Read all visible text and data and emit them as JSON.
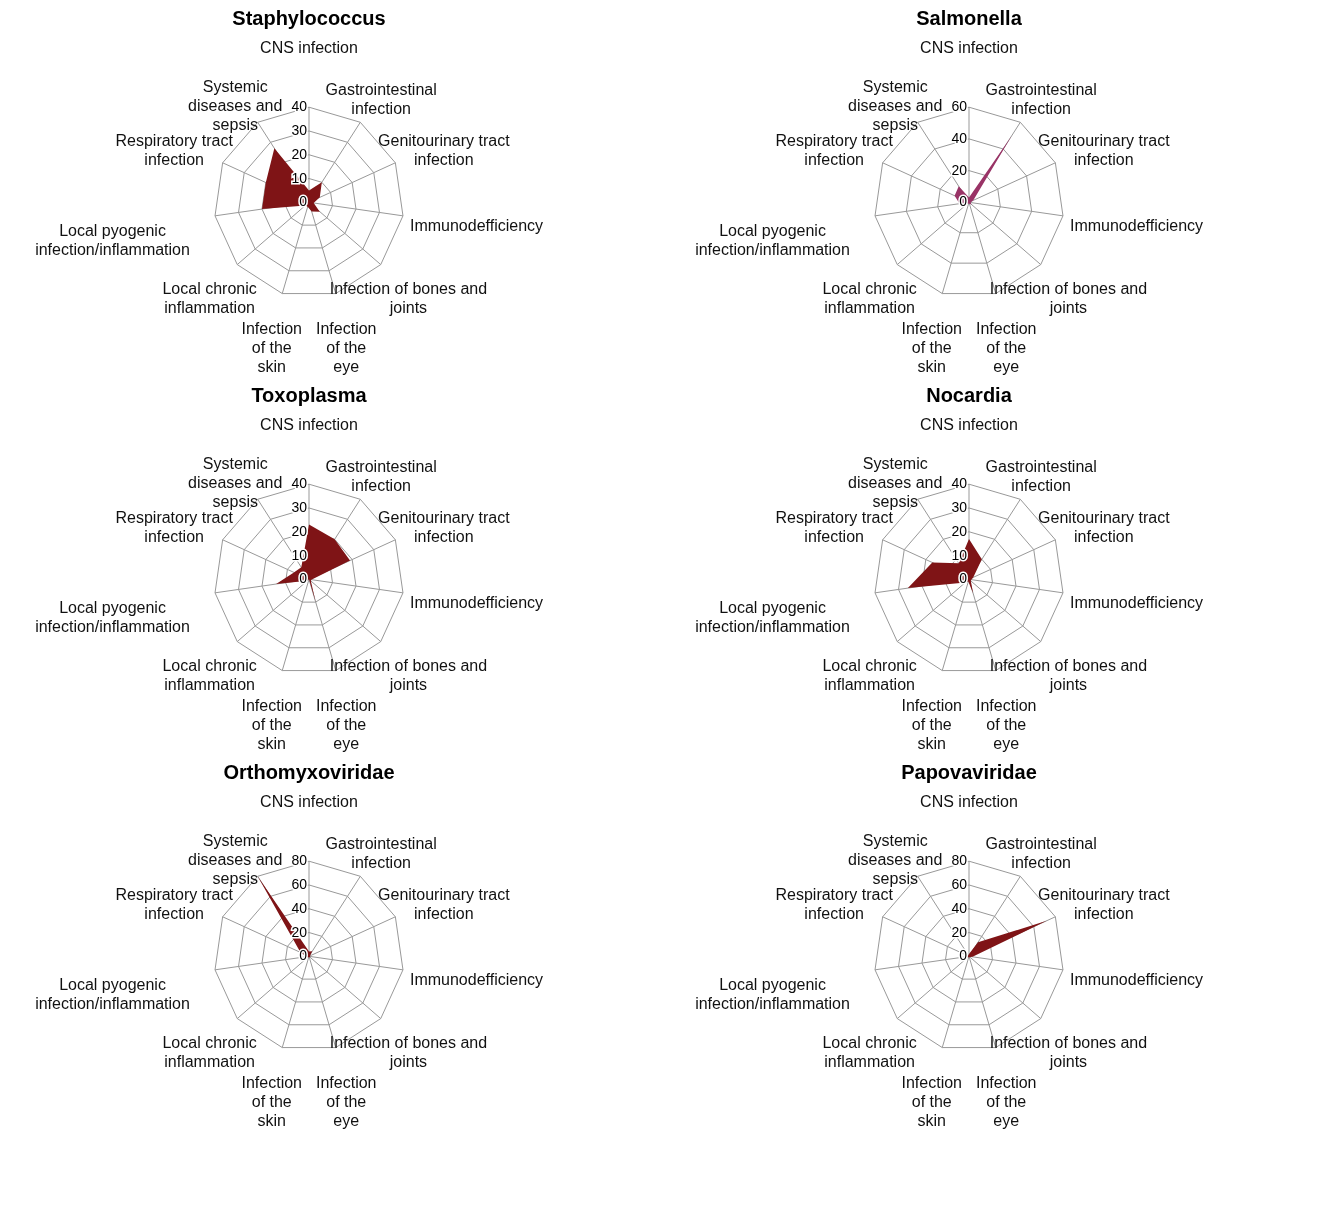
{
  "chart_data": [
    {
      "type": "radar",
      "title": "Staphylococcus",
      "grid": true,
      "categories": [
        "CNS infection",
        "Gastrointestinal infection",
        "Genitourinary tract infection",
        "Immunodefficiency",
        "Infection of bones and joints",
        "Infection of the eye",
        "Infection of the skin",
        "Local chronic inflammation",
        "Local pyogenic infection/inflammation",
        "Respiratory tract infection",
        "Systemic diseases and sepsis"
      ],
      "ylim": [
        0,
        40
      ],
      "yticks": [
        0,
        10,
        20,
        30,
        40
      ],
      "series": [
        {
          "color": "#7f1416",
          "values": [
            5,
            10,
            5,
            2,
            6,
            4,
            2,
            2,
            20,
            20,
            27
          ]
        }
      ]
    },
    {
      "type": "radar",
      "title": "Salmonella",
      "grid": true,
      "categories": [
        "CNS infection",
        "Gastrointestinal infection",
        "Genitourinary tract infection",
        "Immunodefficiency",
        "Infection of bones and joints",
        "Infection of the eye",
        "Infection of the skin",
        "Local chronic inflammation",
        "Local pyogenic infection/inflammation",
        "Respiratory tract infection",
        "Systemic diseases and sepsis"
      ],
      "ylim": [
        0,
        60
      ],
      "yticks": [
        0,
        20,
        40,
        60
      ],
      "series": [
        {
          "color": "#993366",
          "values": [
            3,
            50,
            3,
            1,
            2,
            1,
            1,
            1,
            6,
            10,
            12
          ]
        }
      ]
    },
    {
      "type": "radar",
      "title": "Toxoplasma",
      "grid": true,
      "categories": [
        "CNS infection",
        "Gastrointestinal infection",
        "Genitourinary tract infection",
        "Immunodefficiency",
        "Infection of bones and joints",
        "Infection of the eye",
        "Infection of the skin",
        "Local chronic inflammation",
        "Local pyogenic infection/inflammation",
        "Respiratory tract infection",
        "Systemic diseases and sepsis"
      ],
      "ylim": [
        0,
        40
      ],
      "yticks": [
        0,
        10,
        20,
        30,
        40
      ],
      "series": [
        {
          "color": "#7f1416",
          "values": [
            23,
            20,
            19,
            1,
            1,
            10,
            0,
            1,
            14,
            7,
            6
          ]
        }
      ]
    },
    {
      "type": "radar",
      "title": "Nocardia",
      "grid": true,
      "categories": [
        "CNS infection",
        "Gastrointestinal infection",
        "Genitourinary tract infection",
        "Immunodefficiency",
        "Infection of bones and joints",
        "Infection of the eye",
        "Infection of the skin",
        "Local chronic inflammation",
        "Local pyogenic infection/inflammation",
        "Respiratory tract infection",
        "Systemic diseases and sepsis"
      ],
      "ylim": [
        0,
        40
      ],
      "yticks": [
        0,
        10,
        20,
        30,
        40
      ],
      "series": [
        {
          "color": "#7f1416",
          "values": [
            17,
            10,
            2,
            1,
            1,
            6,
            1,
            2,
            26,
            17,
            8
          ]
        }
      ]
    },
    {
      "type": "radar",
      "title": "Orthomyxoviridae",
      "grid": true,
      "categories": [
        "CNS infection",
        "Gastrointestinal infection",
        "Genitourinary tract infection",
        "Immunodefficiency",
        "Infection of bones and joints",
        "Infection of the eye",
        "Infection of the skin",
        "Local chronic inflammation",
        "Local pyogenic infection/inflammation",
        "Respiratory tract infection",
        "Systemic diseases and sepsis"
      ],
      "ylim": [
        0,
        80
      ],
      "yticks": [
        0,
        20,
        40,
        60,
        80
      ],
      "series": [
        {
          "color": "#7f1416",
          "values": [
            4,
            5,
            1,
            1,
            1,
            1,
            1,
            1,
            2,
            8,
            80
          ]
        }
      ]
    },
    {
      "type": "radar",
      "title": "Papovaviridae",
      "grid": true,
      "categories": [
        "CNS infection",
        "Gastrointestinal infection",
        "Genitourinary tract infection",
        "Immunodefficiency",
        "Infection of bones and joints",
        "Infection of the eye",
        "Infection of the skin",
        "Local chronic inflammation",
        "Local pyogenic infection/inflammation",
        "Respiratory tract infection",
        "Systemic diseases and sepsis"
      ],
      "ylim": [
        0,
        80
      ],
      "yticks": [
        0,
        20,
        40,
        60,
        80
      ],
      "series": [
        {
          "color": "#7f1416",
          "values": [
            2,
            14,
            72,
            3,
            1,
            1,
            1,
            1,
            1,
            1,
            1
          ]
        }
      ]
    }
  ]
}
